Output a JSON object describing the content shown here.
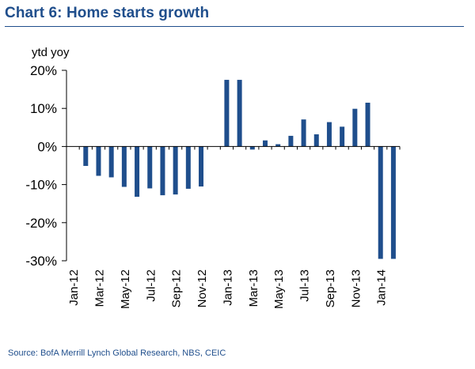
{
  "header": {
    "title": "Chart 6: Home starts growth"
  },
  "footer": {
    "source": "Source: BofA Merrill Lynch Global Research, NBS, CEIC"
  },
  "chart_data": {
    "type": "bar",
    "title": "Chart 6: Home starts growth",
    "ylabel": "ytd yoy",
    "xlabel": "",
    "ylim": [
      -30,
      20
    ],
    "yticks": [
      20,
      10,
      0,
      -10,
      -20,
      -30
    ],
    "ytick_labels": [
      "20%",
      "10%",
      "0%",
      "-10%",
      "-20%",
      "-30%"
    ],
    "bar_color": "#1f4e8c",
    "categories": [
      "Jan-12",
      "Feb-12",
      "Mar-12",
      "Apr-12",
      "May-12",
      "Jun-12",
      "Jul-12",
      "Aug-12",
      "Sep-12",
      "Oct-12",
      "Nov-12",
      "Dec-12",
      "Jan-13",
      "Feb-13",
      "Mar-13",
      "Apr-13",
      "May-13",
      "Jun-13",
      "Jul-13",
      "Aug-13",
      "Sep-13",
      "Oct-13",
      "Nov-13",
      "Dec-13",
      "Jan-14",
      "Feb-14"
    ],
    "xtick_labels": [
      "Jan-12",
      "Mar-12",
      "May-12",
      "Jul-12",
      "Sep-12",
      "Nov-12",
      "Jan-13",
      "Mar-13",
      "May-13",
      "Jul-13",
      "Sep-13",
      "Nov-13",
      "Jan-14"
    ],
    "values": [
      null,
      -5.1,
      -7.7,
      -8.1,
      -10.6,
      -13.2,
      -11.0,
      -12.8,
      -12.6,
      -11.1,
      -10.5,
      null,
      17.5,
      17.5,
      -0.8,
      1.6,
      0.6,
      2.8,
      7.1,
      3.2,
      6.4,
      5.2,
      9.9,
      11.5,
      -29.5,
      -29.5
    ]
  }
}
